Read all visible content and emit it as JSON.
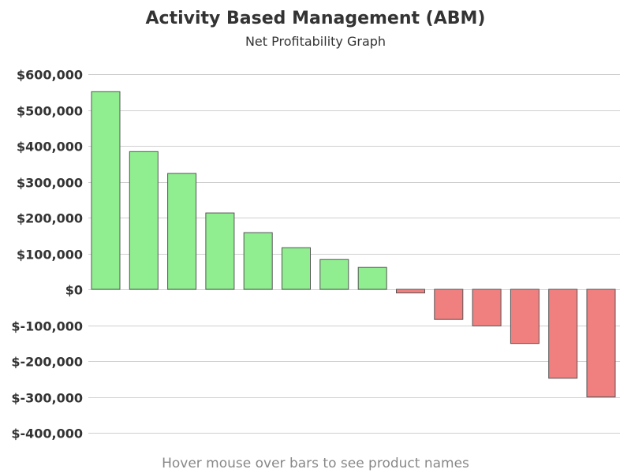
{
  "chart_data": {
    "type": "bar",
    "title": "Activity Based Management (ABM)",
    "subtitle": "Net Profitability Graph",
    "footnote": "Hover mouse over bars to see product names",
    "ylim": [
      -400000,
      600000
    ],
    "yticks": [
      600000,
      500000,
      400000,
      300000,
      200000,
      100000,
      0,
      -100000,
      -200000,
      -300000,
      -400000
    ],
    "ytick_labels": [
      "$600,000",
      "$500,000",
      "$400,000",
      "$300,000",
      "$200,000",
      "$100,000",
      "$0",
      "$-100,000",
      "$-200,000",
      "$-300,000",
      "$-400,000"
    ],
    "grid": true,
    "values": [
      551000,
      384000,
      323000,
      213000,
      158000,
      116000,
      83000,
      61000,
      -10000,
      -84000,
      -102000,
      -151000,
      -248000,
      -300000
    ],
    "colors": {
      "positive": "#90ee90",
      "negative": "#f08080"
    }
  }
}
